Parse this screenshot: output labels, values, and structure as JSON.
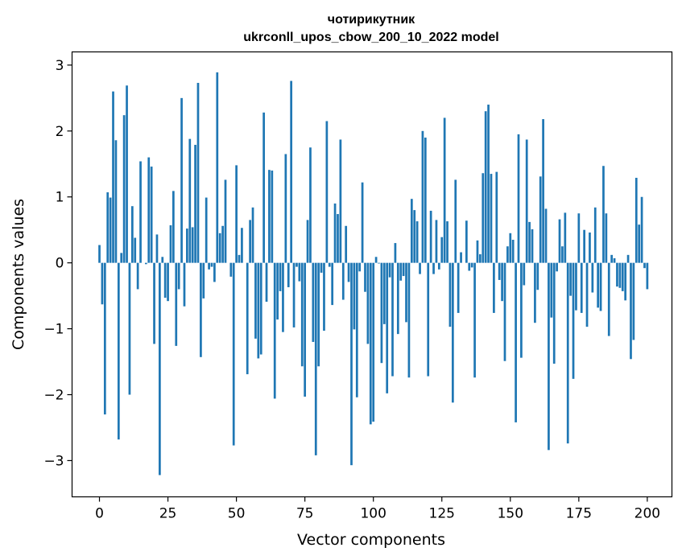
{
  "chart_data": {
    "type": "bar",
    "title_line1": "чотирикутник",
    "title_line2": "ukrconll_upos_cbow_200_10_2022 model",
    "xlabel": "Vector components",
    "ylabel": "Components values",
    "xlim": [
      -10,
      209
    ],
    "ylim": [
      -3.55,
      3.2
    ],
    "xticks": [
      0,
      25,
      50,
      75,
      100,
      125,
      150,
      175,
      200
    ],
    "yticks": [
      -3,
      -2,
      -1,
      0,
      1,
      2,
      3
    ],
    "ytick_labels": [
      "−3",
      "−2",
      "−1",
      "0",
      "1",
      "2",
      "3"
    ],
    "bar_color": "#1f77b4",
    "values": [
      0.27,
      -0.63,
      -2.3,
      1.07,
      0.99,
      2.6,
      1.86,
      -2.68,
      0.15,
      2.24,
      2.69,
      -2.0,
      0.86,
      0.38,
      -0.4,
      1.54,
      0.0,
      -0.02,
      1.6,
      1.46,
      -1.23,
      0.43,
      -3.22,
      0.09,
      -0.53,
      -0.58,
      0.57,
      1.09,
      -1.26,
      -0.4,
      2.5,
      -0.66,
      0.52,
      1.88,
      0.54,
      1.79,
      2.73,
      -1.43,
      -0.54,
      0.99,
      -0.1,
      -0.06,
      -0.29,
      2.89,
      0.45,
      0.56,
      1.26,
      0.0,
      -0.21,
      -2.77,
      1.48,
      0.12,
      0.53,
      0.0,
      -1.69,
      0.65,
      0.84,
      -1.15,
      -1.45,
      -1.39,
      2.28,
      -0.59,
      1.41,
      1.4,
      -2.06,
      -0.86,
      -0.43,
      -1.05,
      1.65,
      -0.37,
      2.76,
      -0.98,
      -0.06,
      -0.28,
      -1.57,
      -2.03,
      0.65,
      1.75,
      -1.2,
      -2.92,
      -1.57,
      -0.15,
      -1.03,
      2.15,
      -0.06,
      -0.64,
      0.9,
      0.74,
      1.87,
      -0.56,
      0.56,
      -0.29,
      -3.07,
      -1.01,
      -2.04,
      -0.13,
      1.22,
      -0.44,
      -1.23,
      -2.45,
      -2.41,
      0.09,
      -0.01,
      -1.52,
      -0.93,
      -1.98,
      -0.22,
      -1.72,
      0.3,
      -1.08,
      -0.27,
      -0.2,
      -0.9,
      -1.74,
      0.97,
      0.8,
      0.63,
      -0.17,
      2.0,
      1.9,
      -1.72,
      0.79,
      -0.17,
      0.65,
      -0.1,
      0.39,
      2.2,
      0.63,
      -0.97,
      -2.12,
      1.26,
      -0.76,
      0.16,
      0.0,
      0.64,
      -0.12,
      -0.07,
      -1.74,
      0.34,
      0.13,
      1.36,
      2.3,
      2.4,
      1.35,
      -0.76,
      1.38,
      -0.26,
      -0.58,
      -1.49,
      0.25,
      0.45,
      0.35,
      -2.42,
      1.95,
      -1.44,
      -0.34,
      1.87,
      0.62,
      0.51,
      -0.91,
      -0.41,
      1.31,
      2.18,
      0.82,
      -2.84,
      -0.83,
      -1.53,
      -0.13,
      0.66,
      0.25,
      0.76,
      -2.74,
      -0.5,
      -1.76,
      -0.72,
      0.75,
      -0.76,
      0.5,
      -0.97,
      0.46,
      -0.45,
      0.84,
      -0.68,
      -0.73,
      1.47,
      0.75,
      -1.11,
      0.12,
      0.07,
      -0.36,
      -0.38,
      -0.43,
      -0.57,
      0.12,
      -1.46,
      -1.17,
      1.29,
      0.58,
      1.0,
      -0.08,
      -0.4
    ]
  }
}
